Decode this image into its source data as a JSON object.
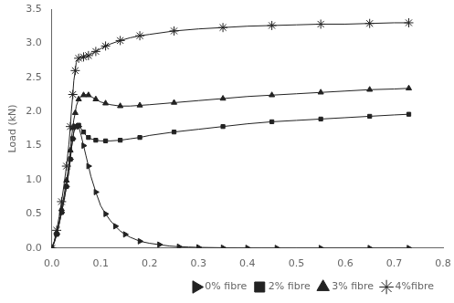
{
  "chart_data": {
    "type": "line",
    "ylabel": "Load (kN)",
    "xlim": [
      0,
      0.8
    ],
    "ylim": [
      0,
      3.5
    ],
    "xticks": [
      {
        "value": 0,
        "label": "0.0"
      },
      0.1,
      0.2,
      0.3,
      0.4,
      0.5,
      0.6,
      0.7,
      0.8
    ],
    "yticks": [
      {
        "value": 0,
        "label": "0.0"
      },
      0.5,
      {
        "value": 1.0,
        "label": "1.0"
      },
      1.5,
      {
        "value": 2.0,
        "label": "2.0"
      },
      2.5,
      {
        "value": 3.0,
        "label": "3.0"
      },
      3.5
    ],
    "grid": false,
    "legend": "lower right",
    "series": [
      {
        "name": "0% fibre",
        "color": "#222222",
        "marker": "triangle-right",
        "x": [
          0,
          0.005,
          0.01,
          0.015,
          0.02,
          0.025,
          0.03,
          0.035,
          0.038,
          0.04,
          0.043,
          0.045,
          0.048,
          0.05,
          0.055,
          0.06,
          0.065,
          0.07,
          0.075,
          0.08,
          0.09,
          0.1,
          0.11,
          0.12,
          0.13,
          0.14,
          0.15,
          0.16,
          0.18,
          0.2,
          0.22,
          0.24,
          0.26,
          0.28,
          0.3,
          0.32,
          0.35,
          0.38,
          0.4,
          0.43,
          0.46,
          0.5,
          0.55,
          0.6,
          0.65,
          0.7,
          0.73
        ],
        "values": [
          0,
          0.08,
          0.2,
          0.35,
          0.52,
          0.7,
          0.9,
          1.12,
          1.3,
          1.45,
          1.6,
          1.7,
          1.78,
          1.82,
          1.78,
          1.65,
          1.5,
          1.35,
          1.2,
          1.05,
          0.82,
          0.62,
          0.5,
          0.4,
          0.32,
          0.25,
          0.2,
          0.16,
          0.1,
          0.07,
          0.05,
          0.03,
          0.02,
          0.015,
          0.01,
          0.008,
          0.005,
          0.003,
          0.002,
          0.001,
          0.001,
          0.0,
          0.0,
          0.0,
          0.0,
          0.0,
          0.0
        ]
      },
      {
        "name": "2% fibre",
        "color": "#222222",
        "marker": "square",
        "x": [
          0,
          0.005,
          0.01,
          0.015,
          0.02,
          0.025,
          0.03,
          0.035,
          0.038,
          0.04,
          0.043,
          0.045,
          0.048,
          0.05,
          0.055,
          0.06,
          0.065,
          0.07,
          0.075,
          0.08,
          0.09,
          0.1,
          0.11,
          0.12,
          0.14,
          0.16,
          0.18,
          0.2,
          0.25,
          0.3,
          0.35,
          0.4,
          0.45,
          0.5,
          0.55,
          0.6,
          0.65,
          0.7,
          0.73
        ],
        "values": [
          0,
          0.08,
          0.2,
          0.35,
          0.52,
          0.7,
          0.9,
          1.12,
          1.3,
          1.45,
          1.6,
          1.7,
          1.78,
          1.82,
          1.8,
          1.75,
          1.7,
          1.65,
          1.62,
          1.6,
          1.58,
          1.57,
          1.57,
          1.57,
          1.58,
          1.6,
          1.62,
          1.65,
          1.7,
          1.74,
          1.78,
          1.82,
          1.85,
          1.87,
          1.89,
          1.91,
          1.93,
          1.95,
          1.96
        ]
      },
      {
        "name": "3% fibre",
        "color": "#222222",
        "marker": "triangle-up",
        "x": [
          0,
          0.005,
          0.01,
          0.015,
          0.02,
          0.025,
          0.03,
          0.035,
          0.038,
          0.04,
          0.043,
          0.045,
          0.048,
          0.05,
          0.055,
          0.06,
          0.065,
          0.07,
          0.075,
          0.08,
          0.09,
          0.1,
          0.11,
          0.12,
          0.14,
          0.16,
          0.18,
          0.2,
          0.25,
          0.3,
          0.35,
          0.4,
          0.45,
          0.5,
          0.55,
          0.6,
          0.65,
          0.7,
          0.73
        ],
        "values": [
          0,
          0.09,
          0.22,
          0.38,
          0.57,
          0.77,
          0.99,
          1.23,
          1.43,
          1.6,
          1.76,
          1.88,
          1.98,
          2.08,
          2.18,
          2.22,
          2.24,
          2.25,
          2.24,
          2.22,
          2.18,
          2.14,
          2.12,
          2.1,
          2.08,
          2.08,
          2.09,
          2.1,
          2.13,
          2.16,
          2.19,
          2.22,
          2.24,
          2.26,
          2.28,
          2.3,
          2.32,
          2.33,
          2.34
        ]
      },
      {
        "name": "4%fibre",
        "color": "#222222",
        "marker": "star",
        "x": [
          0,
          0.005,
          0.01,
          0.015,
          0.02,
          0.025,
          0.03,
          0.035,
          0.038,
          0.04,
          0.043,
          0.045,
          0.048,
          0.05,
          0.055,
          0.06,
          0.065,
          0.07,
          0.075,
          0.08,
          0.09,
          0.1,
          0.11,
          0.12,
          0.14,
          0.16,
          0.18,
          0.2,
          0.25,
          0.3,
          0.35,
          0.4,
          0.45,
          0.5,
          0.55,
          0.6,
          0.65,
          0.7,
          0.73
        ],
        "values": [
          0,
          0.1,
          0.26,
          0.46,
          0.68,
          0.93,
          1.2,
          1.52,
          1.78,
          2.0,
          2.25,
          2.45,
          2.6,
          2.72,
          2.78,
          2.8,
          2.8,
          2.8,
          2.82,
          2.84,
          2.88,
          2.92,
          2.96,
          2.99,
          3.04,
          3.08,
          3.11,
          3.13,
          3.18,
          3.21,
          3.23,
          3.25,
          3.26,
          3.27,
          3.28,
          3.28,
          3.29,
          3.3,
          3.3
        ]
      }
    ]
  }
}
